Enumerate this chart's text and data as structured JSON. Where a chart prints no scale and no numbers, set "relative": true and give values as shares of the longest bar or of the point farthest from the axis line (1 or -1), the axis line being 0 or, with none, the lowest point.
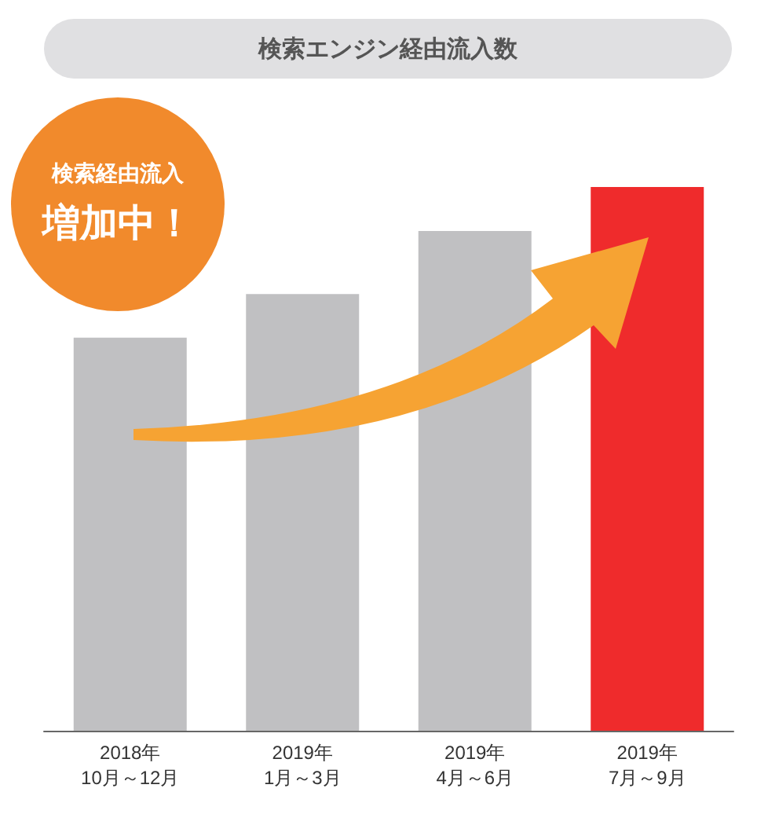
{
  "chart_data": {
    "type": "bar",
    "title": "検索エンジン経由流入数",
    "relative": true,
    "categories": [
      "2018年\n10月～12月",
      "2019年\n1月～3月",
      "2019年\n4月～6月",
      "2019年\n7月～9月"
    ],
    "values": [
      0.723,
      0.803,
      0.919,
      1
    ],
    "colors": [
      "#c0c0c2",
      "#c0c0c2",
      "#c0c0c2",
      "#ef2b2c"
    ],
    "annotations": [
      "検索経由流入",
      "増加中！"
    ]
  }
}
